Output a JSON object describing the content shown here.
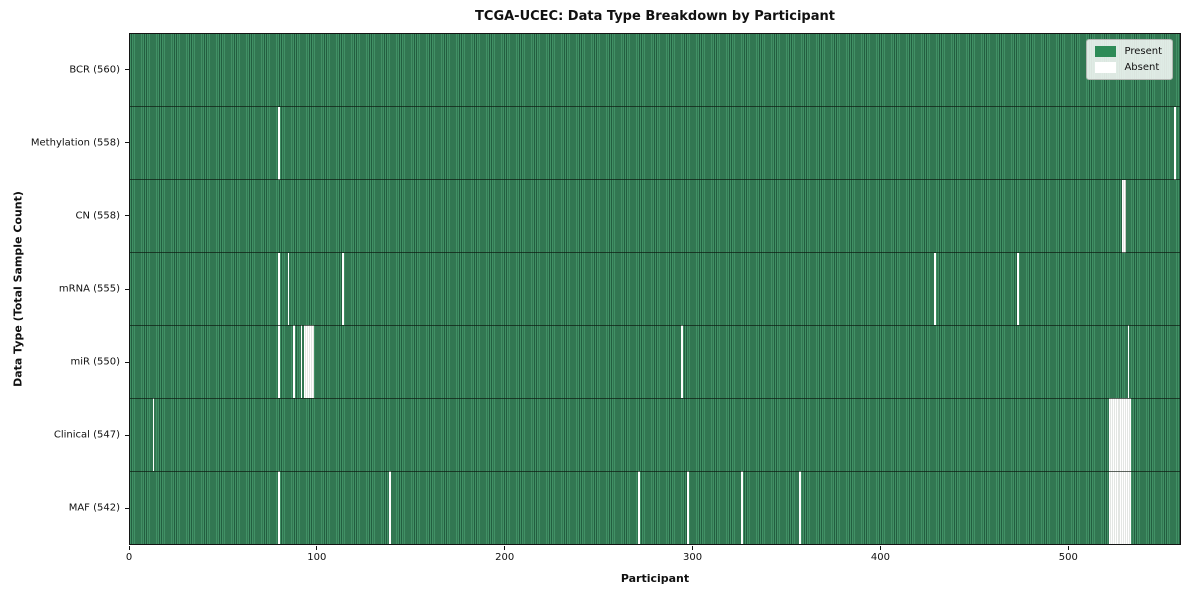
{
  "figure": {
    "title": "TCGA-UCEC: Data Type Breakdown by Participant",
    "xlabel": "Participant",
    "ylabel": "Data Type (Total Sample Count)"
  },
  "legend": {
    "entries": [
      {
        "label": "Present",
        "color": "#2e8b57"
      },
      {
        "label": "Absent",
        "color": "#ffffff"
      }
    ]
  },
  "chart_data": {
    "type": "heatmap",
    "title": "TCGA-UCEC: Data Type Breakdown by Participant",
    "xlabel": "Participant",
    "ylabel": "Data Type (Total Sample Count)",
    "x_range": [
      0,
      560
    ],
    "x_ticks": [
      0,
      100,
      200,
      300,
      400,
      500
    ],
    "n_participants": 560,
    "grid": false,
    "legend_position": "upper right",
    "colors": {
      "present": "#2e8b57",
      "absent": "#ffffff"
    },
    "legend": [
      "Present",
      "Absent"
    ],
    "rows": [
      {
        "data_type": "BCR",
        "label": "BCR (560)",
        "present_count": 560,
        "absent_participants": []
      },
      {
        "data_type": "Methylation",
        "label": "Methylation (558)",
        "present_count": 558,
        "absent_participants": [
          79,
          557
        ]
      },
      {
        "data_type": "CN",
        "label": "CN (558)",
        "present_count": 558,
        "absent_participants": [
          529,
          530
        ]
      },
      {
        "data_type": "mRNA",
        "label": "mRNA (555)",
        "present_count": 555,
        "absent_participants": [
          79,
          84,
          113,
          429,
          473
        ]
      },
      {
        "data_type": "miR",
        "label": "miR (550)",
        "present_count": 550,
        "absent_participants": [
          79,
          87,
          91,
          93,
          94,
          95,
          96,
          97,
          294,
          532
        ]
      },
      {
        "data_type": "Clinical",
        "label": "Clinical (547)",
        "present_count": 547,
        "absent_participants": [
          12,
          522,
          523,
          524,
          525,
          526,
          527,
          528,
          529,
          530,
          531,
          532,
          533
        ]
      },
      {
        "data_type": "MAF",
        "label": "MAF (542)",
        "present_count": 542,
        "absent_participants": [
          79,
          138,
          271,
          297,
          326,
          357,
          522,
          523,
          524,
          525,
          526,
          527,
          528,
          529,
          530,
          531,
          532,
          533
        ]
      }
    ]
  }
}
